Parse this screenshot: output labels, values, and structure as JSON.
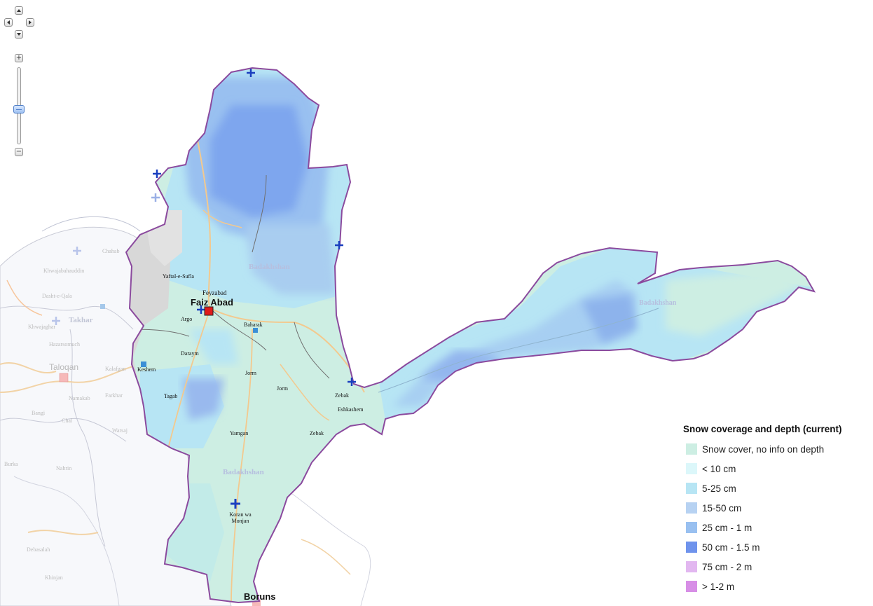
{
  "map": {
    "region_labels": {
      "province_north": "Badakhshan",
      "province_south": "Badakhshan",
      "province_east": "Badakhshan",
      "neighbor_province": "Takhar"
    },
    "cities": {
      "capital": "Faiz Abad",
      "capital_small": "Feyzabad",
      "south": "Boruns",
      "taloqan": "Taloqan"
    },
    "places": {
      "yaftal": "Yaftal-e-Sufla",
      "argo": "Argo",
      "baharak": "Baharak",
      "daraym": "Daraym",
      "keshem": "Keshem",
      "jorm": "Jorm",
      "jorm2": "Jorm",
      "zebak": "Zebak",
      "zebak2": "Zebak",
      "eshkashem": "Eshkashem",
      "yamgan": "Yamgan",
      "koran": "Koran wa Monjan",
      "tagab": "Tagab",
      "chahab": "Chahab",
      "khwaja": "Khwajabahauddin",
      "dasht": "Dasht-e-Qala",
      "khwaja_ghar": "Khwajaghar",
      "hazarsomuch": "Hazarsomuch",
      "bangi": "Bangi",
      "chal": "Chal",
      "warsaj": "Warsaj",
      "farkhar": "Farkhar",
      "namak": "Namakab",
      "kalafgan": "Kalafgan",
      "burka": "Burka",
      "nahrin": "Nahrin",
      "khinjan": "Khinjan",
      "debasalah": "Debasalah"
    },
    "colors": {
      "boundary": "#8b4a9e",
      "snow_no_depth": "#cdeee3",
      "lt10": "#dcf7fa",
      "5_25": "#b7e5f4",
      "15_50": "#b7d2f2",
      "25_1m": "#99c0f0",
      "50_1_5m": "#6f93ec",
      "75_2m": "#e2b7f0",
      "gt1_2m": "#d78ee6"
    }
  },
  "controls": {
    "zoom_in": "+",
    "zoom_out": "−"
  },
  "legend": {
    "title": "Snow coverage and depth (current)",
    "items": [
      {
        "label": "Snow cover, no info on depth",
        "color": "#cdeee3"
      },
      {
        "label": "< 10 cm",
        "color": "#dcf7fa"
      },
      {
        "label": "5-25 cm",
        "color": "#b7e5f4"
      },
      {
        "label": "15-50 cm",
        "color": "#b7d2f2"
      },
      {
        "label": "25 cm - 1 m",
        "color": "#99c0f0"
      },
      {
        "label": "50 cm - 1.5 m",
        "color": "#6f93ec"
      },
      {
        "label": "75 cm - 2 m",
        "color": "#e2b7f0"
      },
      {
        "label": "> 1-2 m",
        "color": "#d78ee6"
      }
    ]
  }
}
